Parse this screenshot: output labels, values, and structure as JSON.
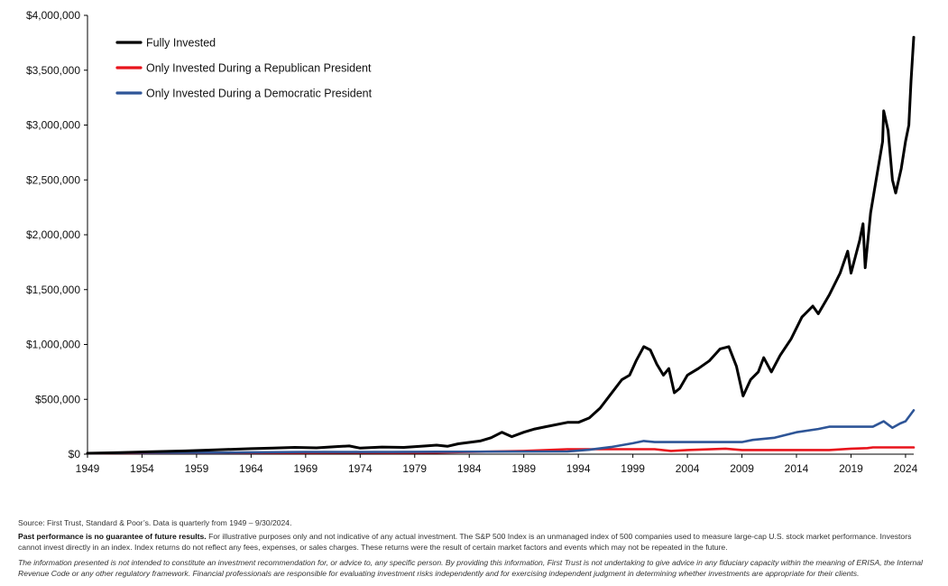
{
  "chart_data": {
    "type": "line",
    "title": "",
    "xlabel": "",
    "ylabel": "",
    "xlim": [
      1949,
      2024.75
    ],
    "ylim": [
      0,
      4000000
    ],
    "x_ticks": [
      1949,
      1954,
      1959,
      1964,
      1969,
      1974,
      1979,
      1984,
      1989,
      1994,
      1999,
      2004,
      2009,
      2014,
      2019,
      2024
    ],
    "x_tick_labels": [
      "1949",
      "1954",
      "1959",
      "1964",
      "1969",
      "1974",
      "1979",
      "1984",
      "1989",
      "1994",
      "1999",
      "2004",
      "2009",
      "2014",
      "2019",
      "2024"
    ],
    "y_ticks": [
      0,
      500000,
      1000000,
      1500000,
      2000000,
      2500000,
      3000000,
      3500000,
      4000000
    ],
    "y_tick_labels": [
      "$0",
      "$500,000",
      "$1,000,000",
      "$1,500,000",
      "$2,000,000",
      "$2,500,000",
      "$3,000,000",
      "$3,500,000",
      "$4,000,000"
    ],
    "grid": false,
    "legend_position": "top-left",
    "series": [
      {
        "name": "Fully Invested",
        "color": "#000000",
        "points": [
          [
            1949,
            8000
          ],
          [
            1952,
            15000
          ],
          [
            1955,
            22000
          ],
          [
            1958,
            30000
          ],
          [
            1961,
            40000
          ],
          [
            1964,
            50000
          ],
          [
            1966,
            55000
          ],
          [
            1968,
            62000
          ],
          [
            1970,
            58000
          ],
          [
            1972,
            70000
          ],
          [
            1973,
            75000
          ],
          [
            1974,
            55000
          ],
          [
            1976,
            65000
          ],
          [
            1978,
            62000
          ],
          [
            1980,
            75000
          ],
          [
            1981,
            82000
          ],
          [
            1982,
            72000
          ],
          [
            1983,
            95000
          ],
          [
            1985,
            120000
          ],
          [
            1986,
            150000
          ],
          [
            1987,
            200000
          ],
          [
            1987.9,
            160000
          ],
          [
            1989,
            200000
          ],
          [
            1990,
            230000
          ],
          [
            1991,
            250000
          ],
          [
            1993,
            290000
          ],
          [
            1994,
            290000
          ],
          [
            1995,
            330000
          ],
          [
            1996,
            420000
          ],
          [
            1997,
            550000
          ],
          [
            1998,
            680000
          ],
          [
            1998.7,
            720000
          ],
          [
            1999.3,
            850000
          ],
          [
            2000,
            980000
          ],
          [
            2000.6,
            950000
          ],
          [
            2001.2,
            820000
          ],
          [
            2001.8,
            720000
          ],
          [
            2002.3,
            780000
          ],
          [
            2002.8,
            560000
          ],
          [
            2003.3,
            600000
          ],
          [
            2004,
            720000
          ],
          [
            2005,
            780000
          ],
          [
            2006,
            850000
          ],
          [
            2007,
            960000
          ],
          [
            2007.8,
            980000
          ],
          [
            2008.5,
            800000
          ],
          [
            2009.1,
            530000
          ],
          [
            2009.8,
            680000
          ],
          [
            2010.5,
            750000
          ],
          [
            2011,
            880000
          ],
          [
            2011.7,
            750000
          ],
          [
            2012.5,
            900000
          ],
          [
            2013.5,
            1050000
          ],
          [
            2014.5,
            1250000
          ],
          [
            2015.5,
            1350000
          ],
          [
            2016,
            1280000
          ],
          [
            2017,
            1450000
          ],
          [
            2018,
            1650000
          ],
          [
            2018.7,
            1850000
          ],
          [
            2019,
            1650000
          ],
          [
            2019.8,
            1950000
          ],
          [
            2020.1,
            2100000
          ],
          [
            2020.3,
            1700000
          ],
          [
            2020.8,
            2200000
          ],
          [
            2021.3,
            2500000
          ],
          [
            2021.9,
            2850000
          ],
          [
            2022.0,
            3130000
          ],
          [
            2022.4,
            2950000
          ],
          [
            2022.8,
            2500000
          ],
          [
            2023.1,
            2380000
          ],
          [
            2023.6,
            2600000
          ],
          [
            2024.0,
            2850000
          ],
          [
            2024.3,
            3000000
          ],
          [
            2024.5,
            3400000
          ],
          [
            2024.75,
            3800000
          ]
        ]
      },
      {
        "name": "Only Invested During a Republican President",
        "color": "#e8141c",
        "points": [
          [
            1949,
            8000
          ],
          [
            1953,
            10000
          ],
          [
            1957,
            12000
          ],
          [
            1961,
            13000
          ],
          [
            1969,
            14000
          ],
          [
            1973,
            15000
          ],
          [
            1977,
            14000
          ],
          [
            1981,
            15000
          ],
          [
            1985,
            22000
          ],
          [
            1989,
            30000
          ],
          [
            1993,
            45000
          ],
          [
            2001,
            45000
          ],
          [
            2002.5,
            30000
          ],
          [
            2004,
            38000
          ],
          [
            2007.5,
            50000
          ],
          [
            2009,
            38000
          ],
          [
            2017,
            38000
          ],
          [
            2019,
            50000
          ],
          [
            2020.5,
            55000
          ],
          [
            2021,
            62000
          ],
          [
            2024.75,
            62000
          ]
        ]
      },
      {
        "name": "Only Invested During a Democratic President",
        "color": "#2e5597",
        "points": [
          [
            1949,
            8000
          ],
          [
            1953,
            12000
          ],
          [
            1961,
            14000
          ],
          [
            1966,
            18000
          ],
          [
            1969,
            20000
          ],
          [
            1977,
            20000
          ],
          [
            1981,
            22000
          ],
          [
            1993,
            25000
          ],
          [
            1995,
            40000
          ],
          [
            1997,
            65000
          ],
          [
            1999,
            100000
          ],
          [
            2000,
            120000
          ],
          [
            2001,
            110000
          ],
          [
            2009,
            110000
          ],
          [
            2010,
            130000
          ],
          [
            2012,
            150000
          ],
          [
            2014,
            200000
          ],
          [
            2016,
            230000
          ],
          [
            2017,
            250000
          ],
          [
            2021,
            250000
          ],
          [
            2022,
            300000
          ],
          [
            2022.8,
            240000
          ],
          [
            2023.5,
            280000
          ],
          [
            2024,
            300000
          ],
          [
            2024.75,
            400000
          ]
        ]
      }
    ]
  },
  "footer": {
    "source": "Source: First Trust, Standard & Poor’s. Data is quarterly from 1949 – 9/30/2024.",
    "disclaimer_bold": "Past performance is no guarantee of future results.",
    "disclaimer_text": " For illustrative purposes only and not indicative of any actual investment. The S&P 500 Index is an unmanaged index of 500 companies used to measure large-cap U.S. stock market performance. Investors cannot invest directly in an index. Index returns do not reflect any fees, expenses, or sales charges. These returns were the result of certain market factors and events which may not be repeated in the future.",
    "legal_italic": "The information presented is not intended to constitute an investment recommendation for, or advice to, any specific person. By providing this information, First Trust is not undertaking to give advice in any fiduciary capacity within the meaning of ERISA, the Internal Revenue Code or any other regulatory framework. Financial professionals are responsible for evaluating investment risks independently and for exercising independent judgment in determining whether investments are appropriate for their clients."
  }
}
